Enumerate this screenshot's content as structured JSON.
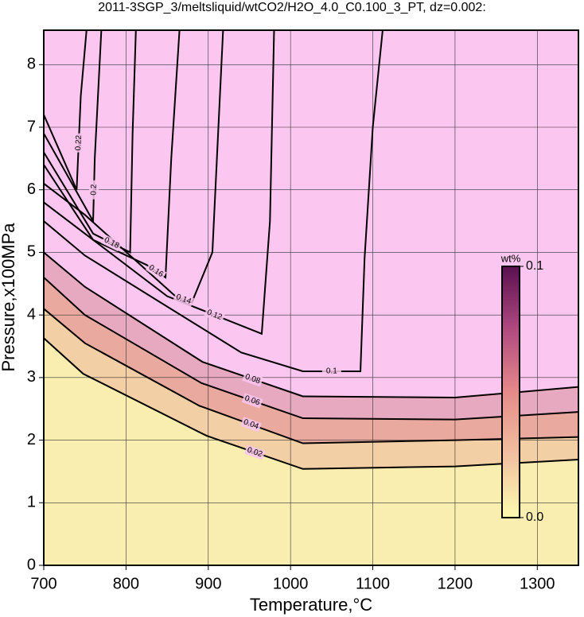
{
  "chart_data": {
    "type": "contour",
    "title": "2011-3SGP_3/meltsliquid/wtCO2/H2O_4.0_C0.100_3_PT, dz=0.002:",
    "x_label": "Temperature,°C",
    "y_label": "Pressure,x100MPa",
    "xlim": [
      700,
      1350
    ],
    "ylim": [
      0,
      8.55
    ],
    "xticks": [
      700,
      800,
      900,
      1000,
      1100,
      1200,
      1300
    ],
    "yticks": [
      0,
      1,
      2,
      3,
      4,
      5,
      6,
      7,
      8
    ],
    "grid": true,
    "background": "#fbc6ef",
    "contours": [
      {
        "level": 0.02,
        "fill": "#f9eeb0",
        "x": [
          700,
          748,
          898,
          1015,
          1200,
          1350
        ],
        "y": [
          3.63,
          3.06,
          2.07,
          1.54,
          1.58,
          1.69
        ]
      },
      {
        "level": 0.04,
        "fill": "#f2cfa4",
        "x": [
          700,
          750,
          889,
          1015,
          1200,
          1350
        ],
        "y": [
          4.1,
          3.55,
          2.55,
          1.95,
          2.0,
          2.05
        ]
      },
      {
        "level": 0.06,
        "fill": "#eaa99e",
        "x": [
          700,
          750,
          892,
          1015,
          1200,
          1350
        ],
        "y": [
          4.6,
          4.0,
          2.91,
          2.35,
          2.33,
          2.45
        ]
      },
      {
        "level": 0.08,
        "fill": "#e7a9bf",
        "x": [
          700,
          750,
          893,
          1015,
          1200,
          1350
        ],
        "y": [
          5.0,
          4.45,
          3.25,
          2.7,
          2.68,
          2.85
        ]
      },
      {
        "level": 0.1,
        "x": [
          700,
          750,
          940,
          1015,
          1085,
          1090,
          1100,
          1112
        ],
        "y": [
          5.5,
          4.95,
          3.4,
          3.1,
          3.1,
          4.9,
          7.0,
          8.55
        ]
      },
      {
        "level": 0.12,
        "x": [
          700,
          750,
          850,
          965,
          975,
          980
        ],
        "y": [
          5.8,
          5.3,
          4.3,
          3.7,
          5.5,
          8.55
        ]
      },
      {
        "level": 0.14,
        "x": [
          700,
          750,
          860,
          880,
          905,
          918
        ],
        "y": [
          6.1,
          5.6,
          4.3,
          4.2,
          5.0,
          8.55
        ]
      },
      {
        "level": 0.16,
        "x": [
          700,
          760,
          825,
          848,
          855,
          865
        ],
        "y": [
          6.4,
          5.2,
          4.8,
          4.6,
          6.5,
          8.55
        ]
      },
      {
        "level": 0.18,
        "x": [
          700,
          760,
          805,
          808,
          812
        ],
        "y": [
          6.6,
          5.3,
          5.0,
          6.9,
          8.55
        ]
      },
      {
        "level": 0.2,
        "x": [
          700,
          760,
          762,
          770
        ],
        "y": [
          6.9,
          5.5,
          6.5,
          8.55
        ]
      },
      {
        "level": 0.22,
        "x": [
          700,
          740,
          745,
          752
        ],
        "y": [
          7.2,
          6.0,
          7.5,
          8.55
        ]
      }
    ],
    "colorbar": {
      "label": "wt%",
      "colors": [
        "#fffbb0",
        "#f0c0a0",
        "#e58a8a",
        "#b04a80",
        "#5a1050"
      ],
      "ticks": [
        {
          "value": 0,
          "label": "0.0"
        },
        {
          "value": 0.1,
          "label": "0.1"
        }
      ],
      "lim": [
        0,
        0.1
      ]
    }
  }
}
